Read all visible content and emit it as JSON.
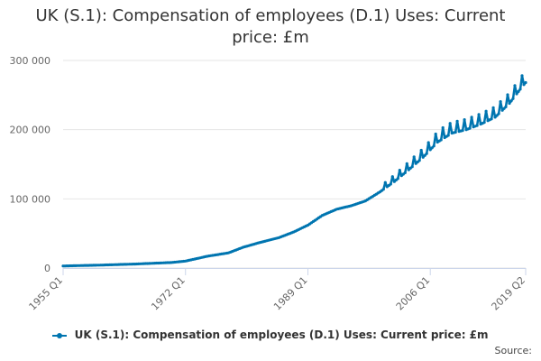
{
  "title_line1": "UK (S.1): Compensation of employees (D.1) Uses: Current",
  "title_line2": "price: £m",
  "legend_label": "UK (S.1): Compensation of employees (D.1) Uses: Current price: £m",
  "source_label": "Source:",
  "colors": {
    "series": "#0075b0",
    "grid": "#e6e6e6",
    "axis": "#ccd6eb",
    "text": "#666666"
  },
  "chart_data": {
    "type": "line",
    "title": "UK (S.1): Compensation of employees (D.1) Uses: Current price: £m",
    "xlabel": "",
    "ylabel": "",
    "x_start": "1955 Q1",
    "x_end": "2019 Q2",
    "frequency": "quarterly",
    "ylim": [
      0,
      300000
    ],
    "y_ticks": [
      0,
      100000,
      200000,
      300000
    ],
    "y_tick_labels": [
      "0",
      "100 000",
      "200 000",
      "300 000"
    ],
    "x_tick_labels": [
      "1955 Q1",
      "1972 Q1",
      "1989 Q1",
      "2006 Q1",
      "2019 Q2"
    ],
    "grid": true,
    "legend": "bottom",
    "series": [
      {
        "name": "UK (S.1): Compensation of employees (D.1) Uses: Current price: £m",
        "anchors": [
          [
            "1955 Q1",
            3000
          ],
          [
            "1960 Q1",
            4200
          ],
          [
            "1965 Q1",
            5800
          ],
          [
            "1970 Q1",
            8000
          ],
          [
            "1972 Q1",
            10000
          ],
          [
            "1975 Q1",
            17000
          ],
          [
            "1978 Q1",
            22000
          ],
          [
            "1980 Q1",
            30000
          ],
          [
            "1982 Q1",
            36000
          ],
          [
            "1985 Q1",
            44000
          ],
          [
            "1987 Q1",
            52000
          ],
          [
            "1989 Q1",
            62000
          ],
          [
            "1991 Q1",
            76000
          ],
          [
            "1993 Q1",
            85000
          ],
          [
            "1995 Q1",
            90000
          ],
          [
            "1997 Q1",
            97000
          ],
          [
            "1999 Q1",
            110000
          ],
          [
            "2001 Q1",
            125000
          ],
          [
            "2003 Q1",
            142000
          ],
          [
            "2005 Q1",
            160000
          ],
          [
            "2007 Q1",
            182000
          ],
          [
            "2009 Q1",
            195000
          ],
          [
            "2011 Q1",
            200000
          ],
          [
            "2013 Q1",
            208000
          ],
          [
            "2015 Q1",
            218000
          ],
          [
            "2017 Q1",
            238000
          ],
          [
            "2018 Q4",
            262000
          ],
          [
            "2019 Q2",
            268000
          ]
        ],
        "q4_seasonal_peak": [
          [
            "1999 Q4",
            8000
          ],
          [
            "2001 Q4",
            10000
          ],
          [
            "2003 Q4",
            12000
          ],
          [
            "2005 Q4",
            13000
          ],
          [
            "2007 Q4",
            16000
          ],
          [
            "2010 Q4",
            15000
          ],
          [
            "2013 Q4",
            15000
          ],
          [
            "2016 Q4",
            15000
          ],
          [
            "2018 Q4",
            16000
          ]
        ]
      }
    ]
  }
}
